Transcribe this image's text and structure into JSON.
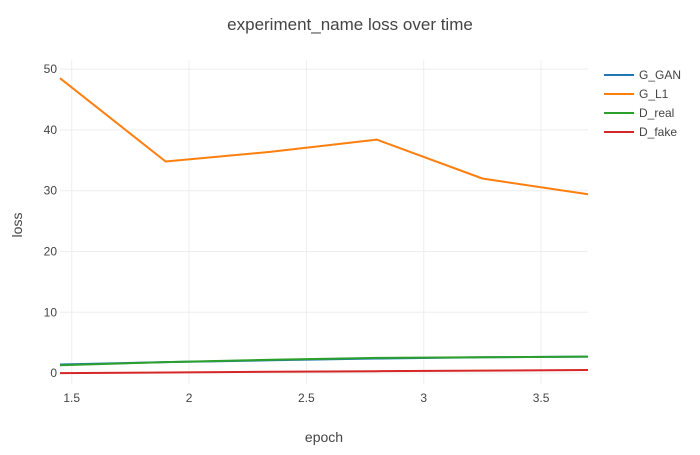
{
  "chart_data": {
    "type": "line",
    "title": "experiment_name loss over time",
    "xlabel": "epoch",
    "ylabel": "loss",
    "xlim": [
      1.45,
      3.7
    ],
    "ylim": [
      -1.8,
      51.5
    ],
    "xticks": [
      1.5,
      2,
      2.5,
      3,
      3.5
    ],
    "xtick_labels": [
      "1.5",
      "2",
      "2.5",
      "3",
      "3.5"
    ],
    "yticks": [
      0,
      10,
      20,
      30,
      40,
      50
    ],
    "ytick_labels": [
      "0",
      "10",
      "20",
      "30",
      "40",
      "50"
    ],
    "grid": true,
    "legend_position": "top-right",
    "series": [
      {
        "name": "G_GAN",
        "color": "#1f77b4",
        "x": [
          1.45,
          1.9,
          2.35,
          2.8,
          3.25,
          3.7
        ],
        "y": [
          1.4,
          1.8,
          2.1,
          2.4,
          2.6,
          2.7
        ]
      },
      {
        "name": "G_L1",
        "color": "#ff7f0e",
        "x": [
          1.45,
          1.9,
          2.35,
          2.8,
          3.25,
          3.7
        ],
        "y": [
          48.5,
          34.8,
          36.4,
          38.4,
          32.0,
          29.4
        ]
      },
      {
        "name": "D_real",
        "color": "#2ca02c",
        "x": [
          1.45,
          1.9,
          2.35,
          2.8,
          3.25,
          3.7
        ],
        "y": [
          1.3,
          1.8,
          2.2,
          2.5,
          2.6,
          2.7
        ]
      },
      {
        "name": "D_fake",
        "color": "#d62728",
        "x": [
          1.45,
          1.9,
          2.35,
          2.8,
          3.25,
          3.7
        ],
        "y": [
          0.0,
          0.1,
          0.2,
          0.3,
          0.4,
          0.5
        ]
      }
    ]
  }
}
